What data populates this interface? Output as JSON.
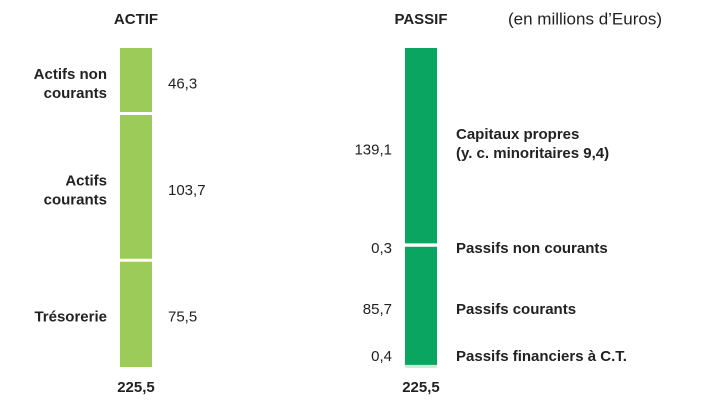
{
  "chart_data": {
    "type": "stacked_column",
    "subtitle": "(en millions d’Euros)",
    "columns": [
      {
        "name": "ACTIF",
        "color": "#9dcb5a",
        "labels": [
          [
            "Actifs non",
            "courants"
          ],
          [
            "Actifs",
            "courants"
          ],
          [
            "Trésorerie"
          ]
        ],
        "values": [
          46.3,
          103.7,
          75.5
        ],
        "value_labels": [
          "46,3",
          "103,7",
          "75,5"
        ],
        "total": 225.5,
        "total_label": "225,5"
      },
      {
        "name": "PASSIF",
        "color": "#0aa661",
        "labels": [
          [
            "Capitaux propres",
            "(y. c. minoritaires 9,4)"
          ],
          [
            "Passifs non courants"
          ],
          [
            "Passifs courants"
          ],
          [
            "Passifs financiers à C.T."
          ]
        ],
        "values": [
          139.1,
          0.3,
          85.7,
          0.4
        ],
        "value_labels": [
          "139,1",
          "0,3",
          "85,7",
          "0,4"
        ],
        "total": 225.5,
        "total_label": "225,5"
      }
    ]
  }
}
